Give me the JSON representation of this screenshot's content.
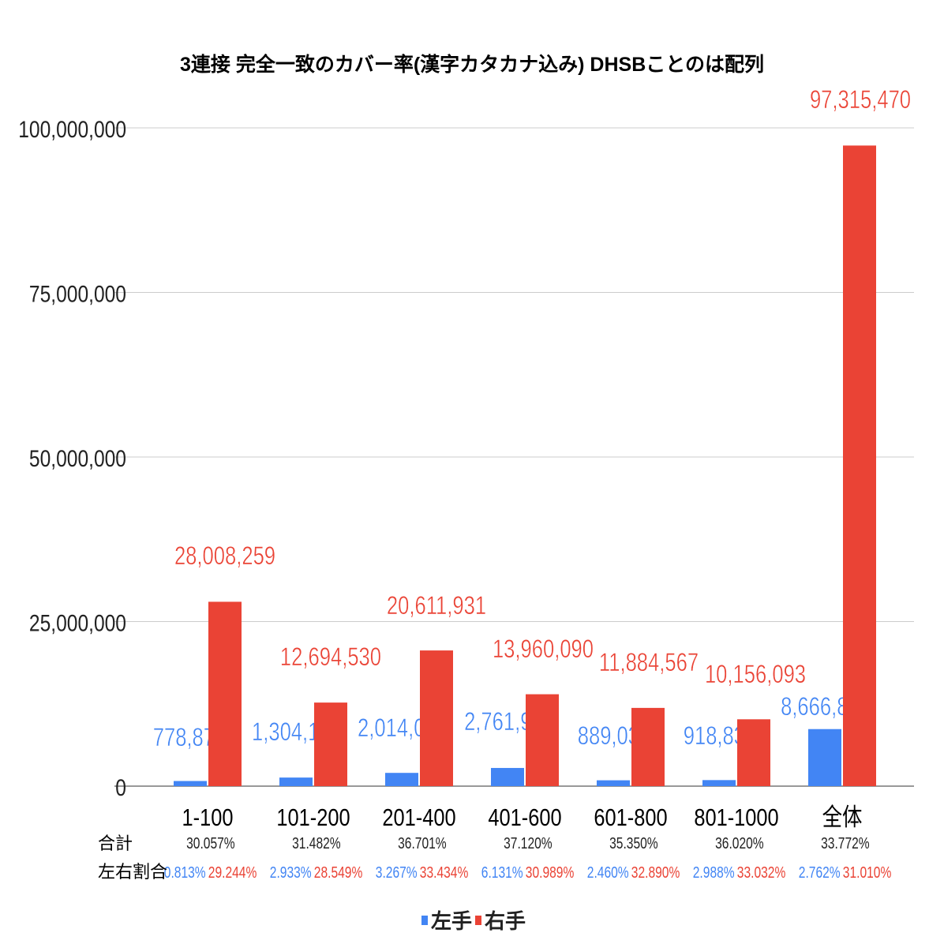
{
  "chart_data": {
    "type": "bar",
    "title": "3連接 完全一致のカバー率(漢字カタカナ込み) DHSBことのは配列",
    "categories": [
      "1-100",
      "101-200",
      "201-400",
      "401-600",
      "601-800",
      "801-1000",
      "全体"
    ],
    "series": [
      {
        "name": "左手",
        "color": "#4285f4",
        "values": [
          778879,
          1304112,
          2014007,
          2761984,
          889034,
          918833,
          8666849
        ],
        "labels": [
          "778,879",
          "1,304,112",
          "2,014,007",
          "2,761,984",
          "889,034",
          "918,833",
          "8,666,849"
        ]
      },
      {
        "name": "右手",
        "color": "#ea4335",
        "values": [
          28008259,
          12694530,
          20611931,
          13960090,
          11884567,
          10156093,
          97315470
        ],
        "labels": [
          "28,008,259",
          "12,694,530",
          "20,611,931",
          "13,960,090",
          "11,884,567",
          "10,156,093",
          "97,315,470"
        ]
      }
    ],
    "ylim": [
      0,
      100000000
    ],
    "yticks": [
      0,
      25000000,
      50000000,
      75000000,
      100000000
    ],
    "ytick_labels": [
      "0",
      "25,000,000",
      "50,000,000",
      "75,000,000",
      "100,000,000"
    ],
    "grid": true,
    "legend_position": "bottom",
    "table": {
      "total_label": "合計",
      "ratio_label": "左右割合",
      "totals": [
        "30.057%",
        "31.482%",
        "36.701%",
        "37.120%",
        "35.350%",
        "36.020%",
        "33.772%"
      ],
      "left_ratios": [
        "0.813%",
        "2.933%",
        "3.267%",
        "6.131%",
        "2.460%",
        "2.988%",
        "2.762%"
      ],
      "right_ratios": [
        "29.244%",
        "28.549%",
        "33.434%",
        "30.989%",
        "32.890%",
        "33.032%",
        "31.010%"
      ]
    }
  }
}
